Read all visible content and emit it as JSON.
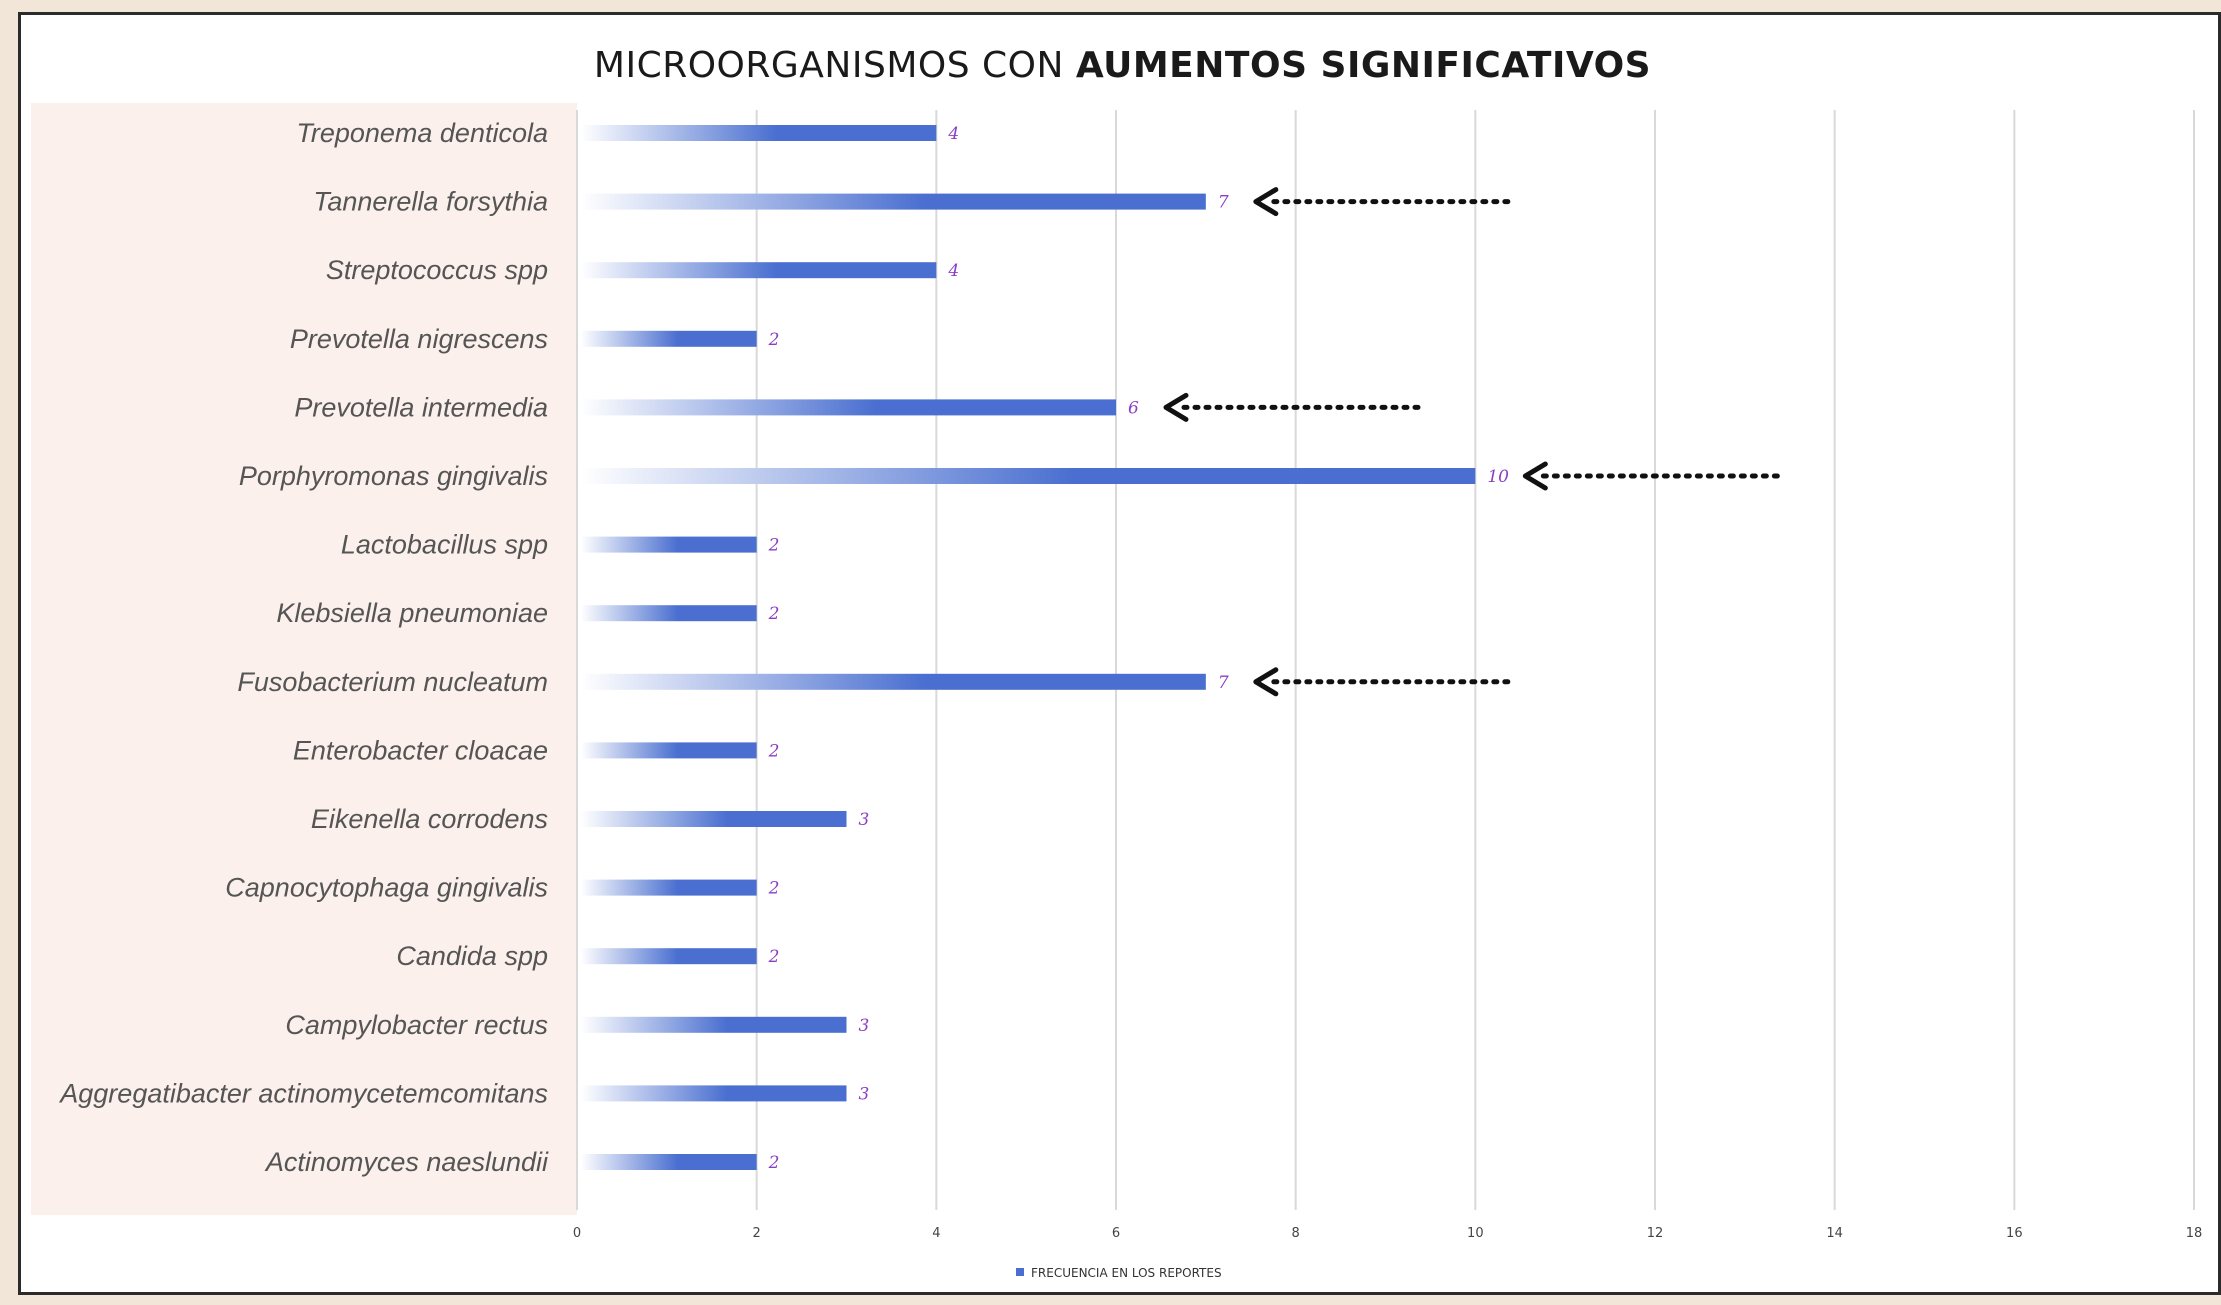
{
  "chart_data": {
    "type": "bar",
    "orientation": "horizontal",
    "title": "MICROORGANISMOS CON AUMENTOS SIGNIFICATIVOS",
    "title_parts": {
      "normal": "MICROORGANISMOS CON ",
      "bold": "AUMENTOS SIGNIFICATIVOS"
    },
    "categories": [
      "Treponema denticola",
      "Tannerella forsythia",
      "Streptococcus spp",
      "Prevotella nigrescens",
      "Prevotella intermedia",
      "Porphyromonas gingivalis",
      "Lactobacillus spp",
      "Klebsiella pneumoniae",
      "Fusobacterium nucleatum",
      "Enterobacter cloacae",
      "Eikenella corrodens",
      "Capnocytophaga gingivalis",
      "Candida spp",
      "Campylobacter rectus",
      "Aggregatibacter actinomycetemcomitans",
      "Actinomyces naeslundii"
    ],
    "series": [
      {
        "name": "FRECUENCIA EN LOS REPORTES",
        "values": [
          4,
          7,
          4,
          2,
          6,
          10,
          2,
          2,
          7,
          2,
          3,
          2,
          2,
          3,
          3,
          2
        ]
      }
    ],
    "data_labels": [
      "4",
      "7",
      "4",
      "2",
      "6",
      "10",
      "2",
      "2",
      "7",
      "2",
      "3",
      "2",
      "2",
      "3",
      "3",
      "2"
    ],
    "highlighted_categories": [
      "Tannerella forsythia",
      "Prevotella intermedia",
      "Porphyromonas gingivalis",
      "Fusobacterium nucleatum"
    ],
    "xlim": [
      0,
      18
    ],
    "xticks": [
      "0",
      "2",
      "4",
      "6",
      "8",
      "10",
      "12",
      "14",
      "16",
      "18"
    ],
    "grid": true,
    "legend": "bottom",
    "colors": {
      "bar": "#4a6fd0",
      "bar_fade": "#ffffff",
      "data_label": "#8a3fc4",
      "category_panel": "#fbf0eb",
      "grid": "#d9d9d9",
      "arrow": "#111111"
    }
  }
}
